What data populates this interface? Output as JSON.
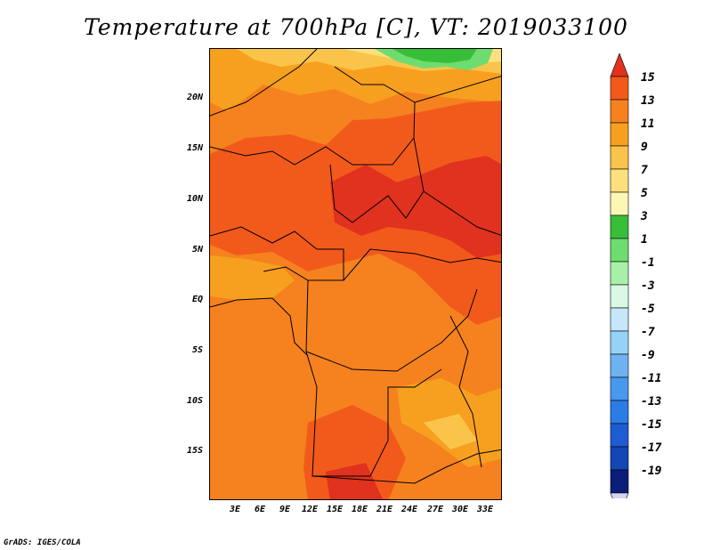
{
  "title": "Temperature at 700hPa [C], VT: 2019033100",
  "credit": "GrADS: IGES/COLA",
  "lat_labels": [
    "20N",
    "15N",
    "10N",
    "5N",
    "EQ",
    "5S",
    "10S",
    "15S"
  ],
  "lon_labels": [
    "3E",
    "6E",
    "9E",
    "12E",
    "15E",
    "18E",
    "21E",
    "24E",
    "27E",
    "30E",
    "33E"
  ],
  "colorbar": {
    "levels": [
      "15",
      "13",
      "11",
      "9",
      "7",
      "5",
      "3",
      "1",
      "-1",
      "-3",
      "-5",
      "-7",
      "-9",
      "-11",
      "-13",
      "-15",
      "-17",
      "-19"
    ],
    "colors": [
      "#e0321e",
      "#f25a1c",
      "#f5821e",
      "#f7a01f",
      "#fac44a",
      "#fbe07d",
      "#fcf7b4",
      "#39be39",
      "#6fdc6f",
      "#a8f0a8",
      "#daf8e4",
      "#c6e6fa",
      "#96d2f8",
      "#6eb2f0",
      "#4898ee",
      "#2c7ce6",
      "#1e5cd2",
      "#1446b4",
      "#0c1e78",
      "#d6d6f2"
    ]
  }
}
